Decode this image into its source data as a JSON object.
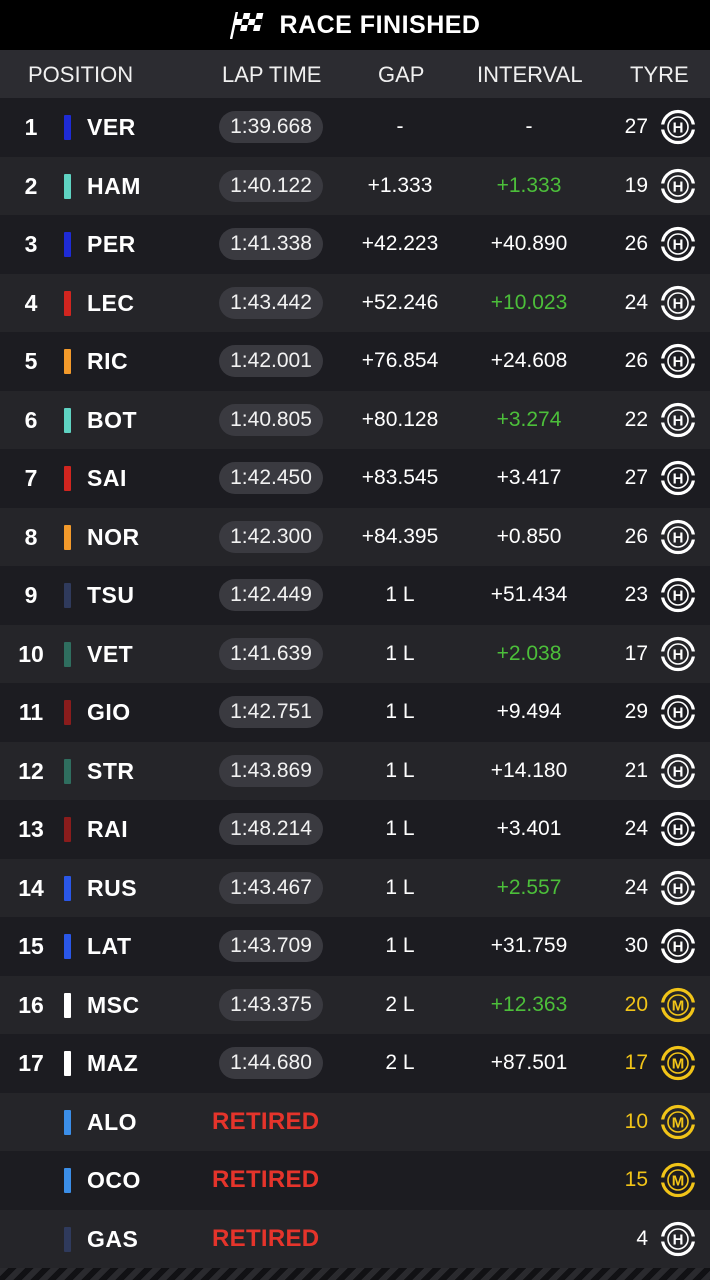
{
  "header": {
    "title": "RACE FINISHED",
    "icon": "checkered-flag-icon"
  },
  "columns": {
    "position": "POSITION",
    "lap_time": "LAP TIME",
    "gap": "GAP",
    "interval": "INTERVAL",
    "tyre": "TYRE"
  },
  "colors": {
    "green": "#4cbf3a",
    "yellow": "#f1c418",
    "retired": "#e5342b"
  },
  "rows": [
    {
      "pos": "1",
      "code": "VER",
      "team_color": "#1e2bd6",
      "lap": "1:39.668",
      "gap": "-",
      "interval": "-",
      "interval_green": false,
      "laps": "27",
      "tyre": "H"
    },
    {
      "pos": "2",
      "code": "HAM",
      "team_color": "#5fd3c2",
      "lap": "1:40.122",
      "gap": "+1.333",
      "interval": "+1.333",
      "interval_green": true,
      "laps": "19",
      "tyre": "H"
    },
    {
      "pos": "3",
      "code": "PER",
      "team_color": "#1e2bd6",
      "lap": "1:41.338",
      "gap": "+42.223",
      "interval": "+40.890",
      "interval_green": false,
      "laps": "26",
      "tyre": "H"
    },
    {
      "pos": "4",
      "code": "LEC",
      "team_color": "#d1251f",
      "lap": "1:43.442",
      "gap": "+52.246",
      "interval": "+10.023",
      "interval_green": true,
      "laps": "24",
      "tyre": "H"
    },
    {
      "pos": "5",
      "code": "RIC",
      "team_color": "#f39a2b",
      "lap": "1:42.001",
      "gap": "+76.854",
      "interval": "+24.608",
      "interval_green": false,
      "laps": "26",
      "tyre": "H"
    },
    {
      "pos": "6",
      "code": "BOT",
      "team_color": "#5fd3c2",
      "lap": "1:40.805",
      "gap": "+80.128",
      "interval": "+3.274",
      "interval_green": true,
      "laps": "22",
      "tyre": "H"
    },
    {
      "pos": "7",
      "code": "SAI",
      "team_color": "#d1251f",
      "lap": "1:42.450",
      "gap": "+83.545",
      "interval": "+3.417",
      "interval_green": false,
      "laps": "27",
      "tyre": "H"
    },
    {
      "pos": "8",
      "code": "NOR",
      "team_color": "#f39a2b",
      "lap": "1:42.300",
      "gap": "+84.395",
      "interval": "+0.850",
      "interval_green": false,
      "laps": "26",
      "tyre": "H"
    },
    {
      "pos": "9",
      "code": "TSU",
      "team_color": "#2f3a5c",
      "lap": "1:42.449",
      "gap": "1 L",
      "interval": "+51.434",
      "interval_green": false,
      "laps": "23",
      "tyre": "H"
    },
    {
      "pos": "10",
      "code": "VET",
      "team_color": "#2f6e5f",
      "lap": "1:41.639",
      "gap": "1 L",
      "interval": "+2.038",
      "interval_green": true,
      "laps": "17",
      "tyre": "H"
    },
    {
      "pos": "11",
      "code": "GIO",
      "team_color": "#8a1c1c",
      "lap": "1:42.751",
      "gap": "1 L",
      "interval": "+9.494",
      "interval_green": false,
      "laps": "29",
      "tyre": "H"
    },
    {
      "pos": "12",
      "code": "STR",
      "team_color": "#2f6e5f",
      "lap": "1:43.869",
      "gap": "1 L",
      "interval": "+14.180",
      "interval_green": false,
      "laps": "21",
      "tyre": "H"
    },
    {
      "pos": "13",
      "code": "RAI",
      "team_color": "#8a1c1c",
      "lap": "1:48.214",
      "gap": "1 L",
      "interval": "+3.401",
      "interval_green": false,
      "laps": "24",
      "tyre": "H"
    },
    {
      "pos": "14",
      "code": "RUS",
      "team_color": "#2a57e8",
      "lap": "1:43.467",
      "gap": "1 L",
      "interval": "+2.557",
      "interval_green": true,
      "laps": "24",
      "tyre": "H"
    },
    {
      "pos": "15",
      "code": "LAT",
      "team_color": "#2a57e8",
      "lap": "1:43.709",
      "gap": "1 L",
      "interval": "+31.759",
      "interval_green": false,
      "laps": "30",
      "tyre": "H"
    },
    {
      "pos": "16",
      "code": "MSC",
      "team_color": "#ffffff",
      "lap": "1:43.375",
      "gap": "2 L",
      "interval": "+12.363",
      "interval_green": true,
      "laps": "20",
      "tyre": "M"
    },
    {
      "pos": "17",
      "code": "MAZ",
      "team_color": "#ffffff",
      "lap": "1:44.680",
      "gap": "2 L",
      "interval": "+87.501",
      "interval_green": false,
      "laps": "17",
      "tyre": "M"
    },
    {
      "pos": "",
      "code": "ALO",
      "team_color": "#3b8ee8",
      "retired": "RETIRED",
      "laps": "10",
      "tyre": "M"
    },
    {
      "pos": "",
      "code": "OCO",
      "team_color": "#3b8ee8",
      "retired": "RETIRED",
      "laps": "15",
      "tyre": "M"
    },
    {
      "pos": "",
      "code": "GAS",
      "team_color": "#2f3a5c",
      "retired": "RETIRED",
      "laps": "4",
      "tyre": "H"
    }
  ]
}
